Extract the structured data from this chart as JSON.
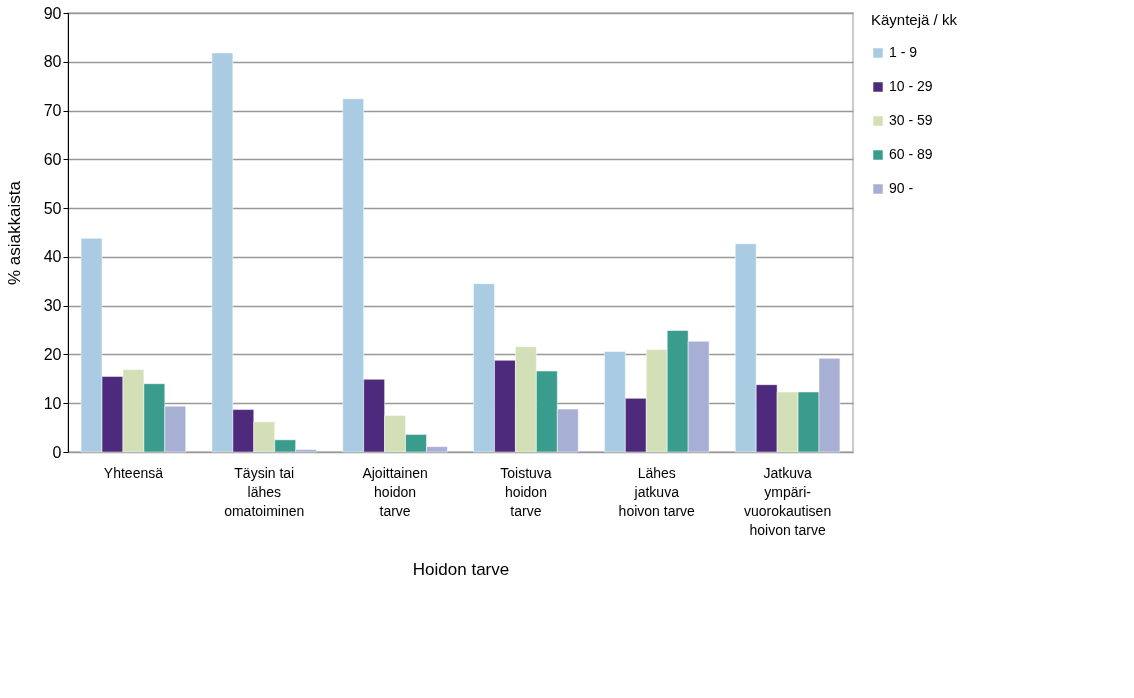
{
  "chart_data": {
    "type": "bar",
    "xlabel": "Hoidon tarve",
    "ylabel": "% asiakkaista",
    "legend_title": "Käyntejä / kk",
    "categories": [
      "Yhteensä",
      "Täysin tai\nlähes\nomatoiminen",
      "Ajoittainen\nhoidon\ntarve",
      "Toistuva\nhoidon\ntarve",
      "Lähes\njatkuva\nhoivon tarve",
      "Jatkuva\nympäri-\nvuorokautisen\nhoivon tarve"
    ],
    "series": [
      {
        "name": "1 - 9",
        "color": "#a9cce3",
        "values": [
          43.8,
          81.8,
          72.4,
          34.5,
          20.6,
          42.7
        ]
      },
      {
        "name": "10 - 29",
        "color": "#4e2a7c",
        "values": [
          15.5,
          8.7,
          14.9,
          18.8,
          11.0,
          13.8
        ]
      },
      {
        "name": "30 - 59",
        "color": "#d3e0b7",
        "values": [
          16.9,
          6.2,
          7.5,
          21.6,
          21.0,
          12.3
        ]
      },
      {
        "name": "60 - 89",
        "color": "#3a9c8c",
        "values": [
          14.0,
          2.5,
          3.6,
          16.6,
          24.9,
          12.3
        ]
      },
      {
        "name": "90 -",
        "color": "#a7b0d4",
        "values": [
          9.4,
          0.5,
          1.1,
          8.8,
          22.7,
          19.2
        ]
      }
    ],
    "ylim": [
      0,
      90
    ],
    "yticks": [
      0,
      10,
      20,
      30,
      40,
      50,
      60,
      70,
      80,
      90
    ],
    "grid": "y",
    "legend": "right"
  }
}
